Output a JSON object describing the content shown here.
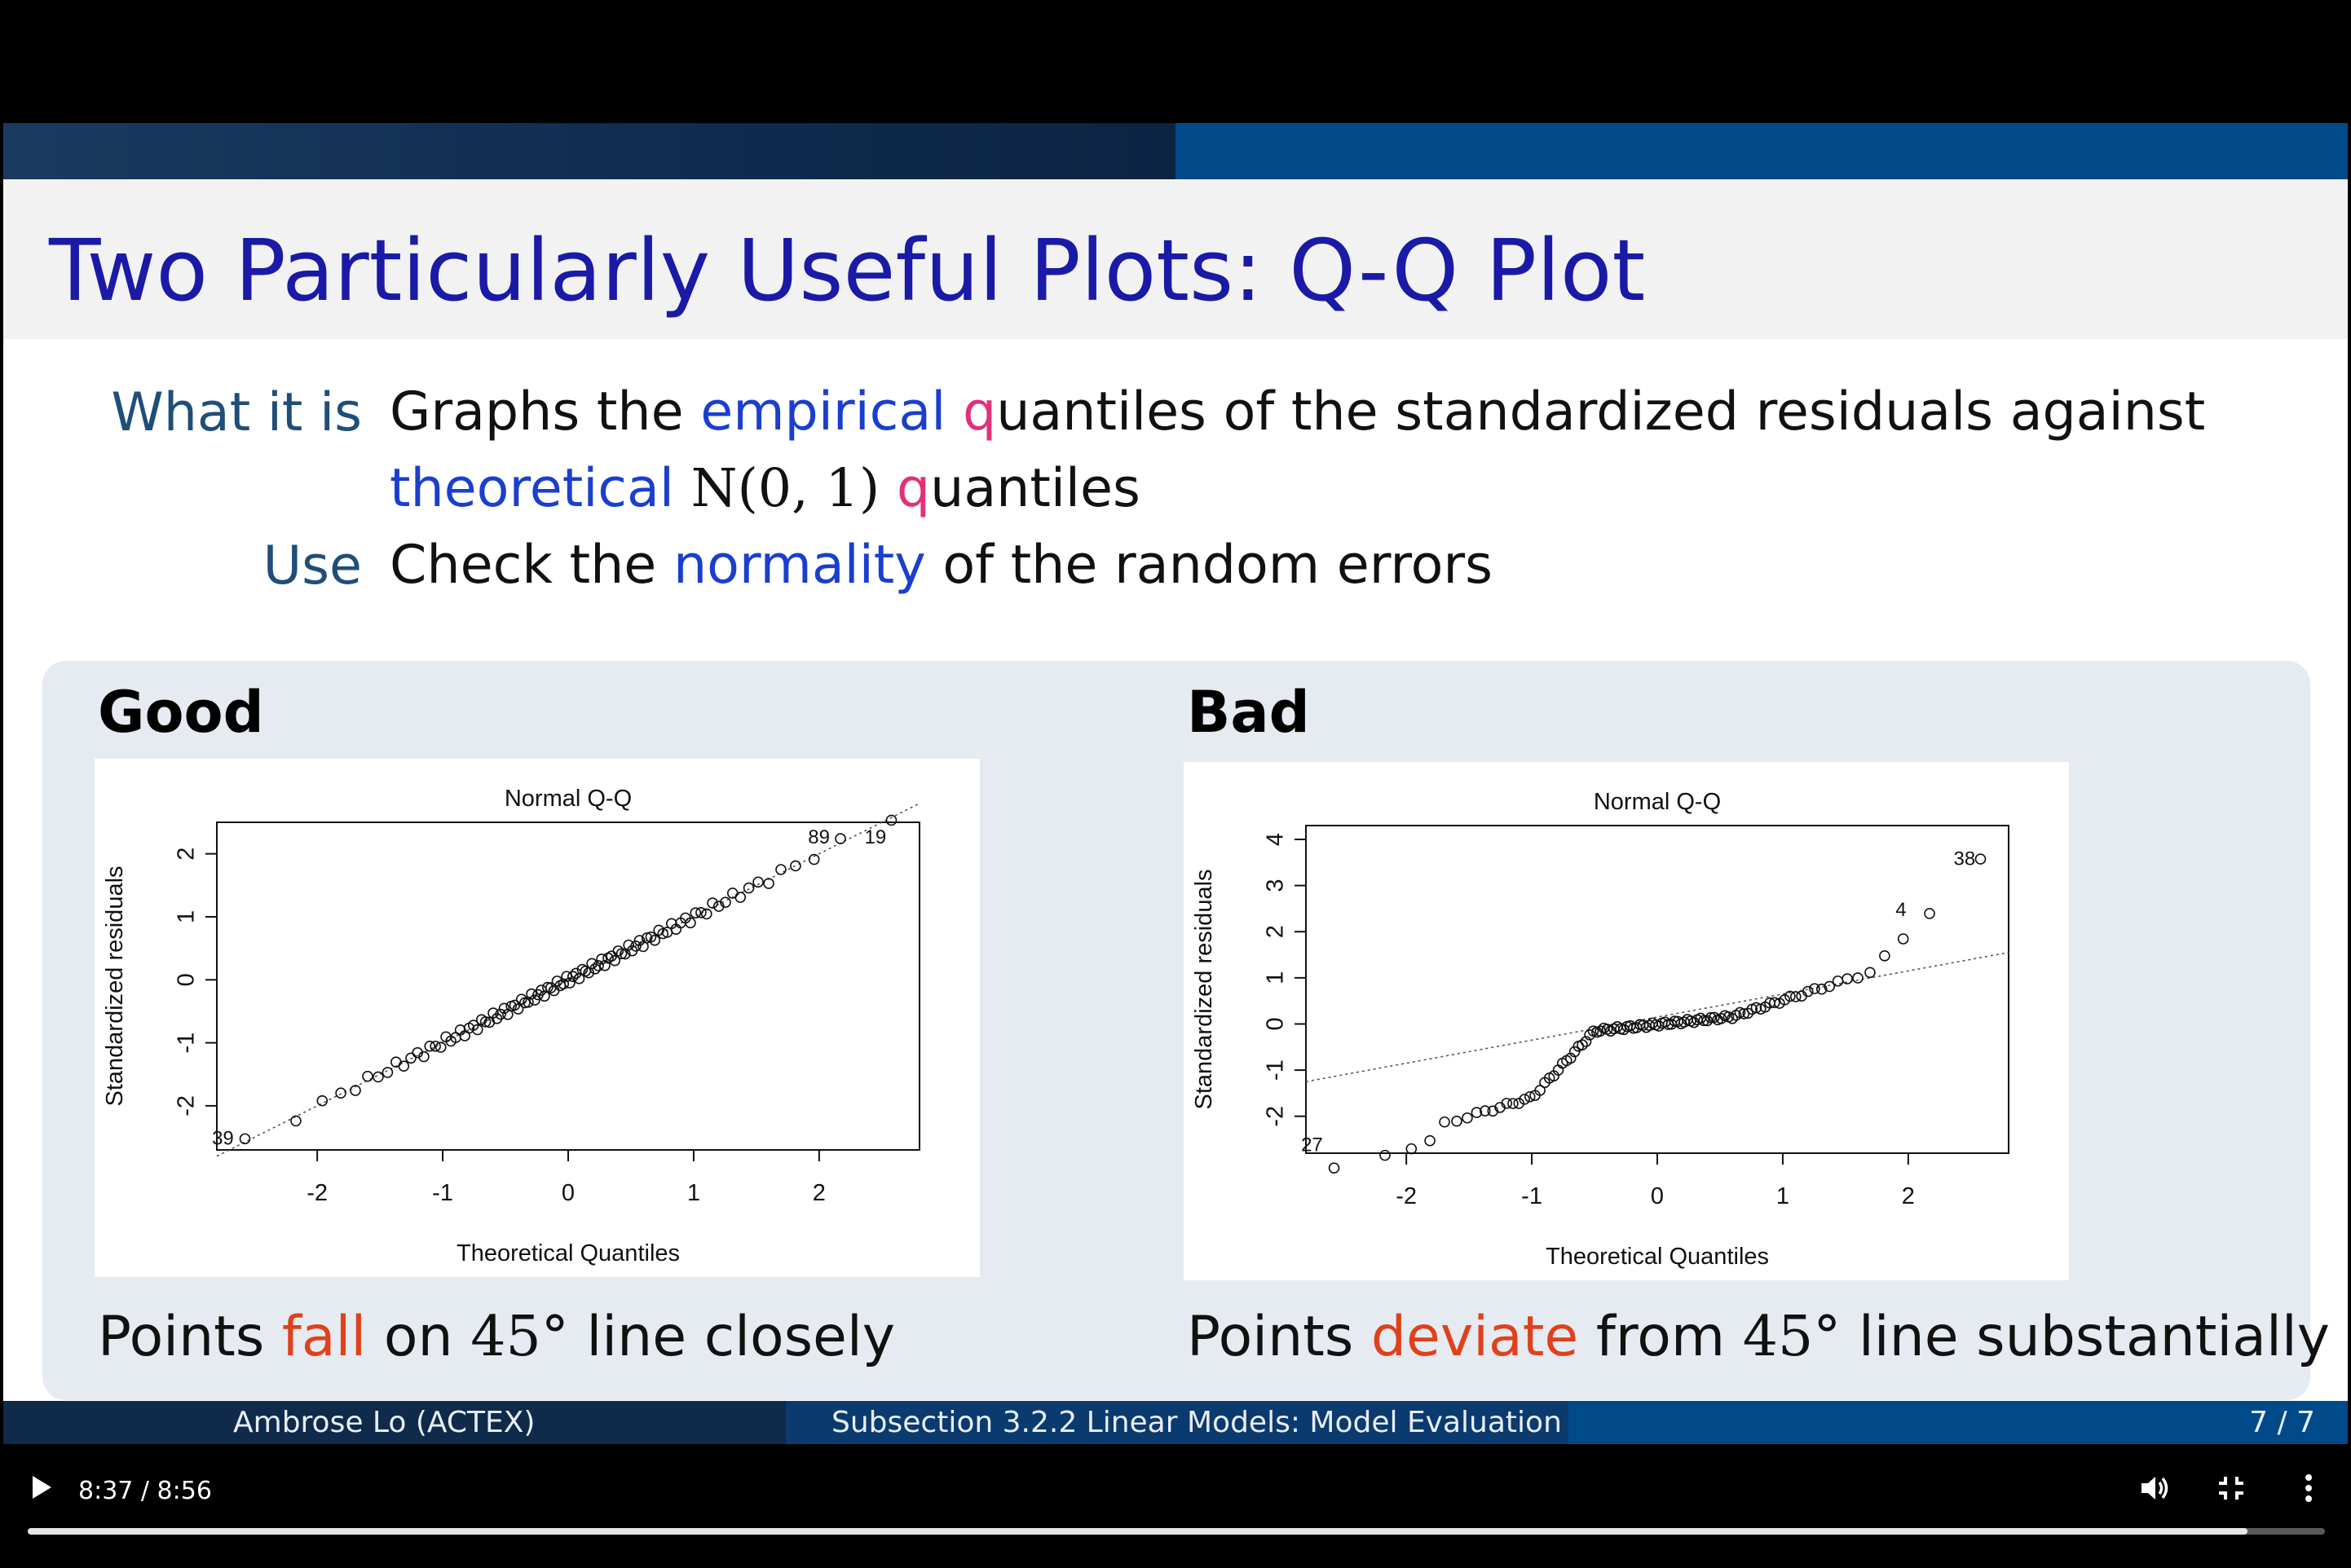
{
  "slide": {
    "title": "Two Particularly Useful Plots: Q-Q Plot",
    "definitions": {
      "what_term": "What it is",
      "what_text_1": "Graphs the ",
      "what_hl_1": "empirical",
      "what_q_1": "q",
      "what_text_2": "uantiles of the standardized residuals against",
      "what_hl_2": "theoretical",
      "what_math": "N(0, 1)",
      "what_q_2": "q",
      "what_text_3": "uantiles",
      "use_term": "Use",
      "use_text_1": "Check the ",
      "use_hl": "normality",
      "use_text_2": " of the random errors"
    },
    "good": {
      "heading": "Good",
      "caption_1": "Points ",
      "caption_hl": "fall",
      "caption_2": " on ",
      "caption_math": "45°",
      "caption_3": " line closely"
    },
    "bad": {
      "heading": "Bad",
      "caption_1": "Points ",
      "caption_hl": "deviate",
      "caption_2": " from ",
      "caption_math": "45°",
      "caption_3": " line substantially"
    },
    "footer": {
      "author": "Ambrose Lo  (ACTEX)",
      "section": "Subsection 3.2.2 Linear Models: Model Evaluation",
      "page": "7 / 7"
    }
  },
  "player": {
    "time": "8:37 / 8:56",
    "progress": 0.9664,
    "icons": [
      "play-icon",
      "volume-icon",
      "exit-fullscreen-icon",
      "more-options-icon"
    ]
  },
  "chart_data": [
    {
      "type": "scatter",
      "title": "Normal Q-Q",
      "xlabel": "Theoretical Quantiles",
      "ylabel": "Standardized residuals",
      "xlim": [
        -2.8,
        2.8
      ],
      "ylim": [
        -2.7,
        2.5
      ],
      "xticks": [
        "-2",
        "-1",
        "0",
        "1",
        "2"
      ],
      "yticks": [
        "-2",
        "-1",
        "0",
        "1",
        "2"
      ],
      "reference_line": {
        "intercept": 0,
        "slope": 1,
        "style": "dotted"
      },
      "labels": [
        {
          "text": "89",
          "x": 2.15,
          "y": 2.28
        },
        {
          "text": "19",
          "x": 2.6,
          "y": 2.28
        },
        {
          "text": "39",
          "x": -2.6,
          "y": -2.5
        }
      ],
      "n": 100,
      "distortion": "none"
    },
    {
      "type": "scatter",
      "title": "Normal Q-Q",
      "xlabel": "Theoretical Quantiles",
      "ylabel": "Standardized residuals",
      "xlim": [
        -2.8,
        2.8
      ],
      "ylim": [
        -2.8,
        4.3
      ],
      "xticks": [
        "-2",
        "-1",
        "0",
        "1",
        "2"
      ],
      "yticks": [
        "-2",
        "-1",
        "0",
        "1",
        "2",
        "3",
        "4"
      ],
      "reference_line": {
        "intercept": 0.15,
        "slope": 0.5,
        "style": "dotted"
      },
      "labels": [
        {
          "text": "38",
          "x": 2.6,
          "y": 3.6
        },
        {
          "text": "4",
          "x": 2.05,
          "y": 2.5
        },
        {
          "text": "27",
          "x": -2.6,
          "y": -2.6
        }
      ],
      "n": 100,
      "distortion": "skewed"
    }
  ]
}
